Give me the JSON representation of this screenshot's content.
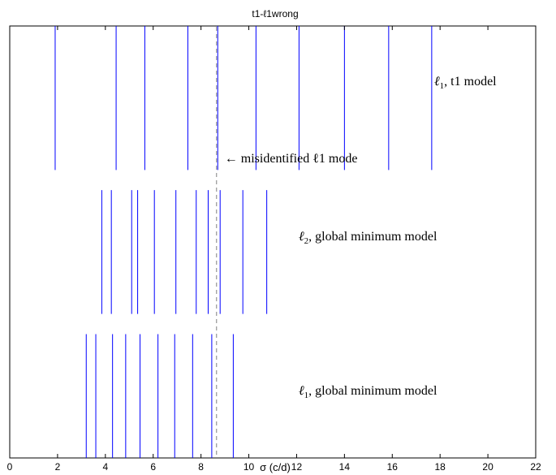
{
  "chart_data": {
    "type": "scatter",
    "title": "t1-ℓ1wrong",
    "xlabel": "σ (c/d)",
    "ylabel": "",
    "xlim": [
      0,
      22
    ],
    "ylim": [
      0,
      3
    ],
    "xticks": [
      "0",
      "2",
      "4",
      "6",
      "8",
      "10",
      "12",
      "14",
      "16",
      "18",
      "20",
      "22"
    ],
    "grid": false,
    "mark_style": "vertical line segments",
    "mark_color": "#0000ff",
    "reference_line": {
      "x": 8.65,
      "style": "dashed",
      "color": "#808080",
      "annotation": "← misidentified ℓ1 mode"
    },
    "series": [
      {
        "label_main": "ℓ",
        "label_sub": "1",
        "label_rest": ", t1 model",
        "y_range": [
          2.0,
          3.0
        ],
        "x": [
          1.9,
          4.45,
          5.65,
          7.45,
          8.7,
          10.3,
          12.1,
          14.0,
          15.85,
          17.65
        ]
      },
      {
        "label_main": "ℓ",
        "label_sub": "2",
        "label_rest": ", global minimum model",
        "y_range": [
          1.0,
          1.86
        ],
        "x": [
          3.85,
          4.25,
          5.1,
          5.35,
          6.05,
          6.95,
          7.8,
          8.3,
          8.8,
          9.75,
          10.75
        ]
      },
      {
        "label_main": "ℓ",
        "label_sub": "1",
        "label_rest": ", global minimum model",
        "y_range": [
          0.0,
          0.86
        ],
        "x": [
          3.2,
          3.6,
          4.3,
          4.85,
          5.45,
          6.2,
          6.9,
          7.65,
          8.45,
          9.35
        ]
      }
    ]
  }
}
